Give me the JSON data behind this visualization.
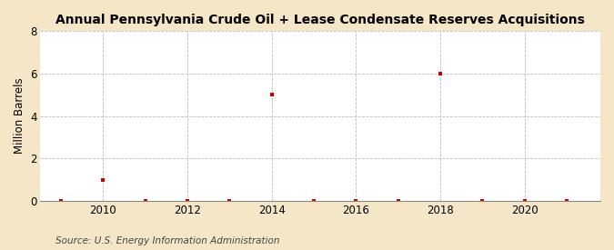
{
  "title": "Annual Pennsylvania Crude Oil + Lease Condensate Reserves Acquisitions",
  "ylabel": "Million Barrels",
  "source": "Source: U.S. Energy Information Administration",
  "figure_background_color": "#f5e6c8",
  "plot_background_color": "#ffffff",
  "years": [
    2009,
    2010,
    2011,
    2012,
    2013,
    2014,
    2015,
    2016,
    2017,
    2018,
    2019,
    2020,
    2021
  ],
  "values": [
    0.0,
    1.0,
    0.0,
    0.0,
    0.0,
    5.0,
    0.0,
    0.0,
    0.0,
    6.0,
    0.0,
    0.0,
    0.0
  ],
  "marker_color": "#cc0000",
  "marker_style": "s",
  "marker_size": 3.5,
  "xlim": [
    2008.5,
    2021.8
  ],
  "ylim": [
    0,
    8
  ],
  "yticks": [
    0,
    2,
    4,
    6,
    8
  ],
  "xticks": [
    2010,
    2012,
    2014,
    2016,
    2018,
    2020
  ],
  "grid_color": "#bbbbbb",
  "grid_linestyle": "--",
  "grid_linewidth": 0.6,
  "title_fontsize": 10,
  "ylabel_fontsize": 8.5,
  "tick_fontsize": 8.5,
  "source_fontsize": 7.5
}
